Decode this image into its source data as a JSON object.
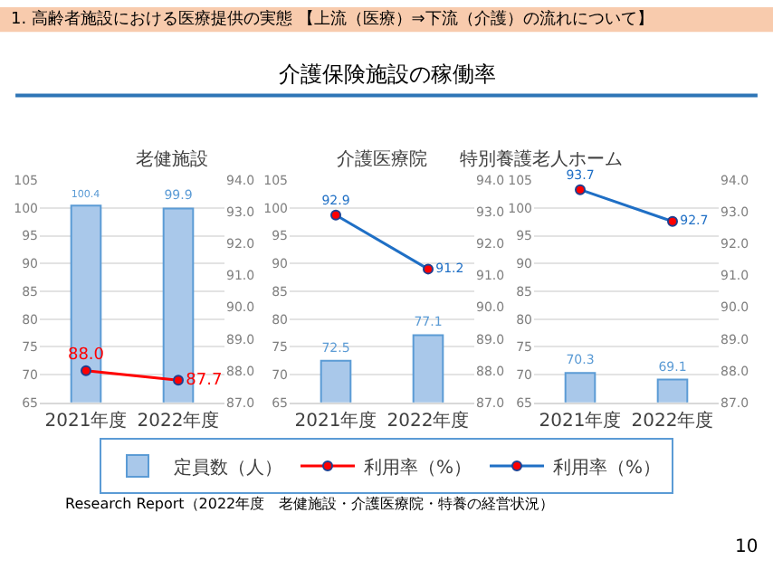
{
  "chart_data": [
    {
      "type": "bar",
      "title": "老健施設",
      "categories": [
        "2021年度",
        "2022年度"
      ],
      "series": [
        {
          "name": "定員数（人）",
          "color": "#a9c8ea",
          "values": [
            100.4,
            99.9
          ],
          "value_labels": [
            "100.4",
            "99.9"
          ]
        },
        {
          "name": "利用率（%）",
          "type": "line",
          "axis": "y2",
          "color": "#ff0000",
          "values": [
            88.0,
            87.7
          ],
          "value_labels": [
            "88.0",
            "87.7"
          ]
        }
      ],
      "ylim": [
        65,
        105
      ],
      "yticks": [
        65,
        70,
        75,
        80,
        85,
        90,
        95,
        100,
        105
      ],
      "y2lim": [
        87,
        94
      ],
      "y2ticks": [
        {
          "value": 87,
          "label": "87.0"
        },
        {
          "value": 88,
          "label": "88.0"
        },
        {
          "value": 89,
          "label": "89.0"
        },
        {
          "value": 90,
          "label": "90.0"
        },
        {
          "value": 91,
          "label": "91.0"
        },
        {
          "value": 92,
          "label": "92.0"
        },
        {
          "value": 93,
          "label": "93.0"
        },
        {
          "value": 94,
          "label": "94.0"
        }
      ],
      "grid": "y",
      "legend": "bottom",
      "marker": "circle",
      "annotations": [
        "1. 高齢者施設における医療提供の実態 【上流（医療）⇒下流（介護）の流れについて】",
        "介護保険施設の稼働率",
        "Research Report（2022年度　老健施設・介護医療院・特養の経営状況）",
        "10"
      ]
    },
    {
      "type": "bar",
      "title": "介護医療院",
      "categories": [
        "2021年度",
        "2022年度"
      ],
      "series": [
        {
          "name": "定員数（人）",
          "color": "#a9c8ea",
          "values": [
            72.5,
            77.1
          ],
          "value_labels": [
            "72.5",
            "77.1"
          ]
        },
        {
          "name": "利用率（%）",
          "type": "line",
          "axis": "y2",
          "color": "#1f6fc5",
          "values": [
            92.9,
            91.2
          ],
          "value_labels": [
            "92.9",
            "91.2"
          ]
        }
      ],
      "ylim": [
        65,
        105
      ],
      "yticks": [
        65,
        70,
        75,
        80,
        85,
        90,
        95,
        100,
        105
      ],
      "y2lim": [
        87,
        94
      ],
      "y2ticks": [
        {
          "value": 87,
          "label": "87.0"
        },
        {
          "value": 88,
          "label": "88.0"
        },
        {
          "value": 89,
          "label": "89.0"
        },
        {
          "value": 90,
          "label": "90.0"
        },
        {
          "value": 91,
          "label": "91.0"
        },
        {
          "value": 92,
          "label": "92.0"
        },
        {
          "value": 93,
          "label": "93.0"
        },
        {
          "value": 94,
          "label": "94.0"
        }
      ],
      "grid": "y",
      "legend": "bottom",
      "marker": "circle"
    },
    {
      "type": "bar",
      "title": "特別養護老人ホーム",
      "categories": [
        "2021年度",
        "2022年度"
      ],
      "series": [
        {
          "name": "定員数（人）",
          "color": "#a9c8ea",
          "values": [
            70.3,
            69.1
          ],
          "value_labels": [
            "70.3",
            "69.1"
          ]
        },
        {
          "name": "利用率（%）",
          "type": "line",
          "axis": "y2",
          "color": "#1f6fc5",
          "values": [
            93.7,
            92.7
          ],
          "value_labels": [
            "93.7",
            "92.7"
          ]
        }
      ],
      "ylim": [
        65,
        105
      ],
      "yticks": [
        65,
        70,
        75,
        80,
        85,
        90,
        95,
        100,
        105
      ],
      "y2lim": [
        87,
        94
      ],
      "y2ticks": [
        {
          "value": 87,
          "label": "87.0"
        },
        {
          "value": 88,
          "label": "88.0"
        },
        {
          "value": 89,
          "label": "89.0"
        },
        {
          "value": 90,
          "label": "90.0"
        },
        {
          "value": 91,
          "label": "91.0"
        },
        {
          "value": 92,
          "label": "92.0"
        },
        {
          "value": 93,
          "label": "93.0"
        },
        {
          "value": 94,
          "label": "94.0"
        }
      ],
      "grid": "y",
      "legend": "bottom",
      "marker": "circle"
    }
  ]
}
